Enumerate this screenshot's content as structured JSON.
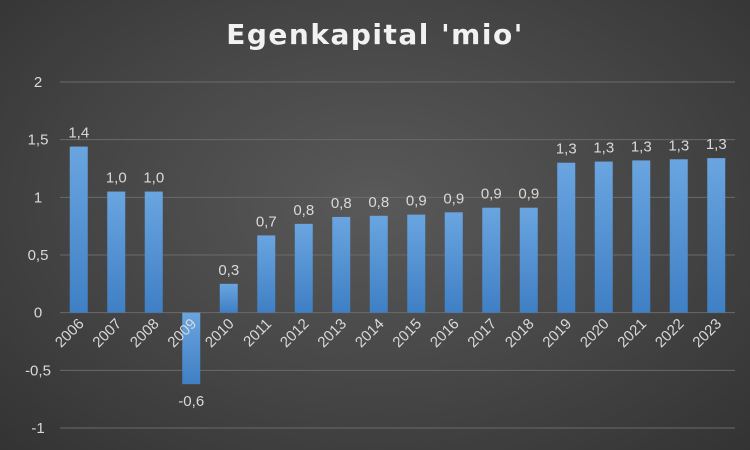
{
  "chart_data": {
    "type": "bar",
    "title": "Egenkapital 'mio'",
    "xlabel": "",
    "ylabel": "",
    "categories": [
      "2006",
      "2007",
      "2008",
      "2009",
      "2010",
      "2011",
      "2012",
      "2013",
      "2014",
      "2015",
      "2016",
      "2017",
      "2018",
      "2019",
      "2020",
      "2021",
      "2022",
      "2023"
    ],
    "values": [
      1.44,
      1.05,
      1.05,
      -0.62,
      0.25,
      0.67,
      0.77,
      0.83,
      0.84,
      0.85,
      0.87,
      0.91,
      0.91,
      1.3,
      1.31,
      1.32,
      1.33,
      1.34
    ],
    "data_labels": [
      "1,4",
      "1,0",
      "1,0",
      "-0,6",
      "0,3",
      "0,7",
      "0,8",
      "0,8",
      "0,8",
      "0,9",
      "0,9",
      "0,9",
      "0,9",
      "1,3",
      "1,3",
      "1,3",
      "1,3",
      "1,3"
    ],
    "y_ticks": [
      {
        "value": 2,
        "label": "2"
      },
      {
        "value": 1.5,
        "label": "1,5"
      },
      {
        "value": 1,
        "label": "1"
      },
      {
        "value": 0.5,
        "label": "0,5"
      },
      {
        "value": 0,
        "label": "0"
      },
      {
        "value": -0.5,
        "label": "-0,5"
      },
      {
        "value": -1,
        "label": "-1"
      }
    ],
    "ylim": [
      -1,
      2
    ],
    "grid": true,
    "legend": "none",
    "colors": {
      "bar_top": "#6aa5e0",
      "bar_bottom": "#3f7fc4",
      "background": "#454545",
      "text": "#d9d9d9"
    }
  }
}
